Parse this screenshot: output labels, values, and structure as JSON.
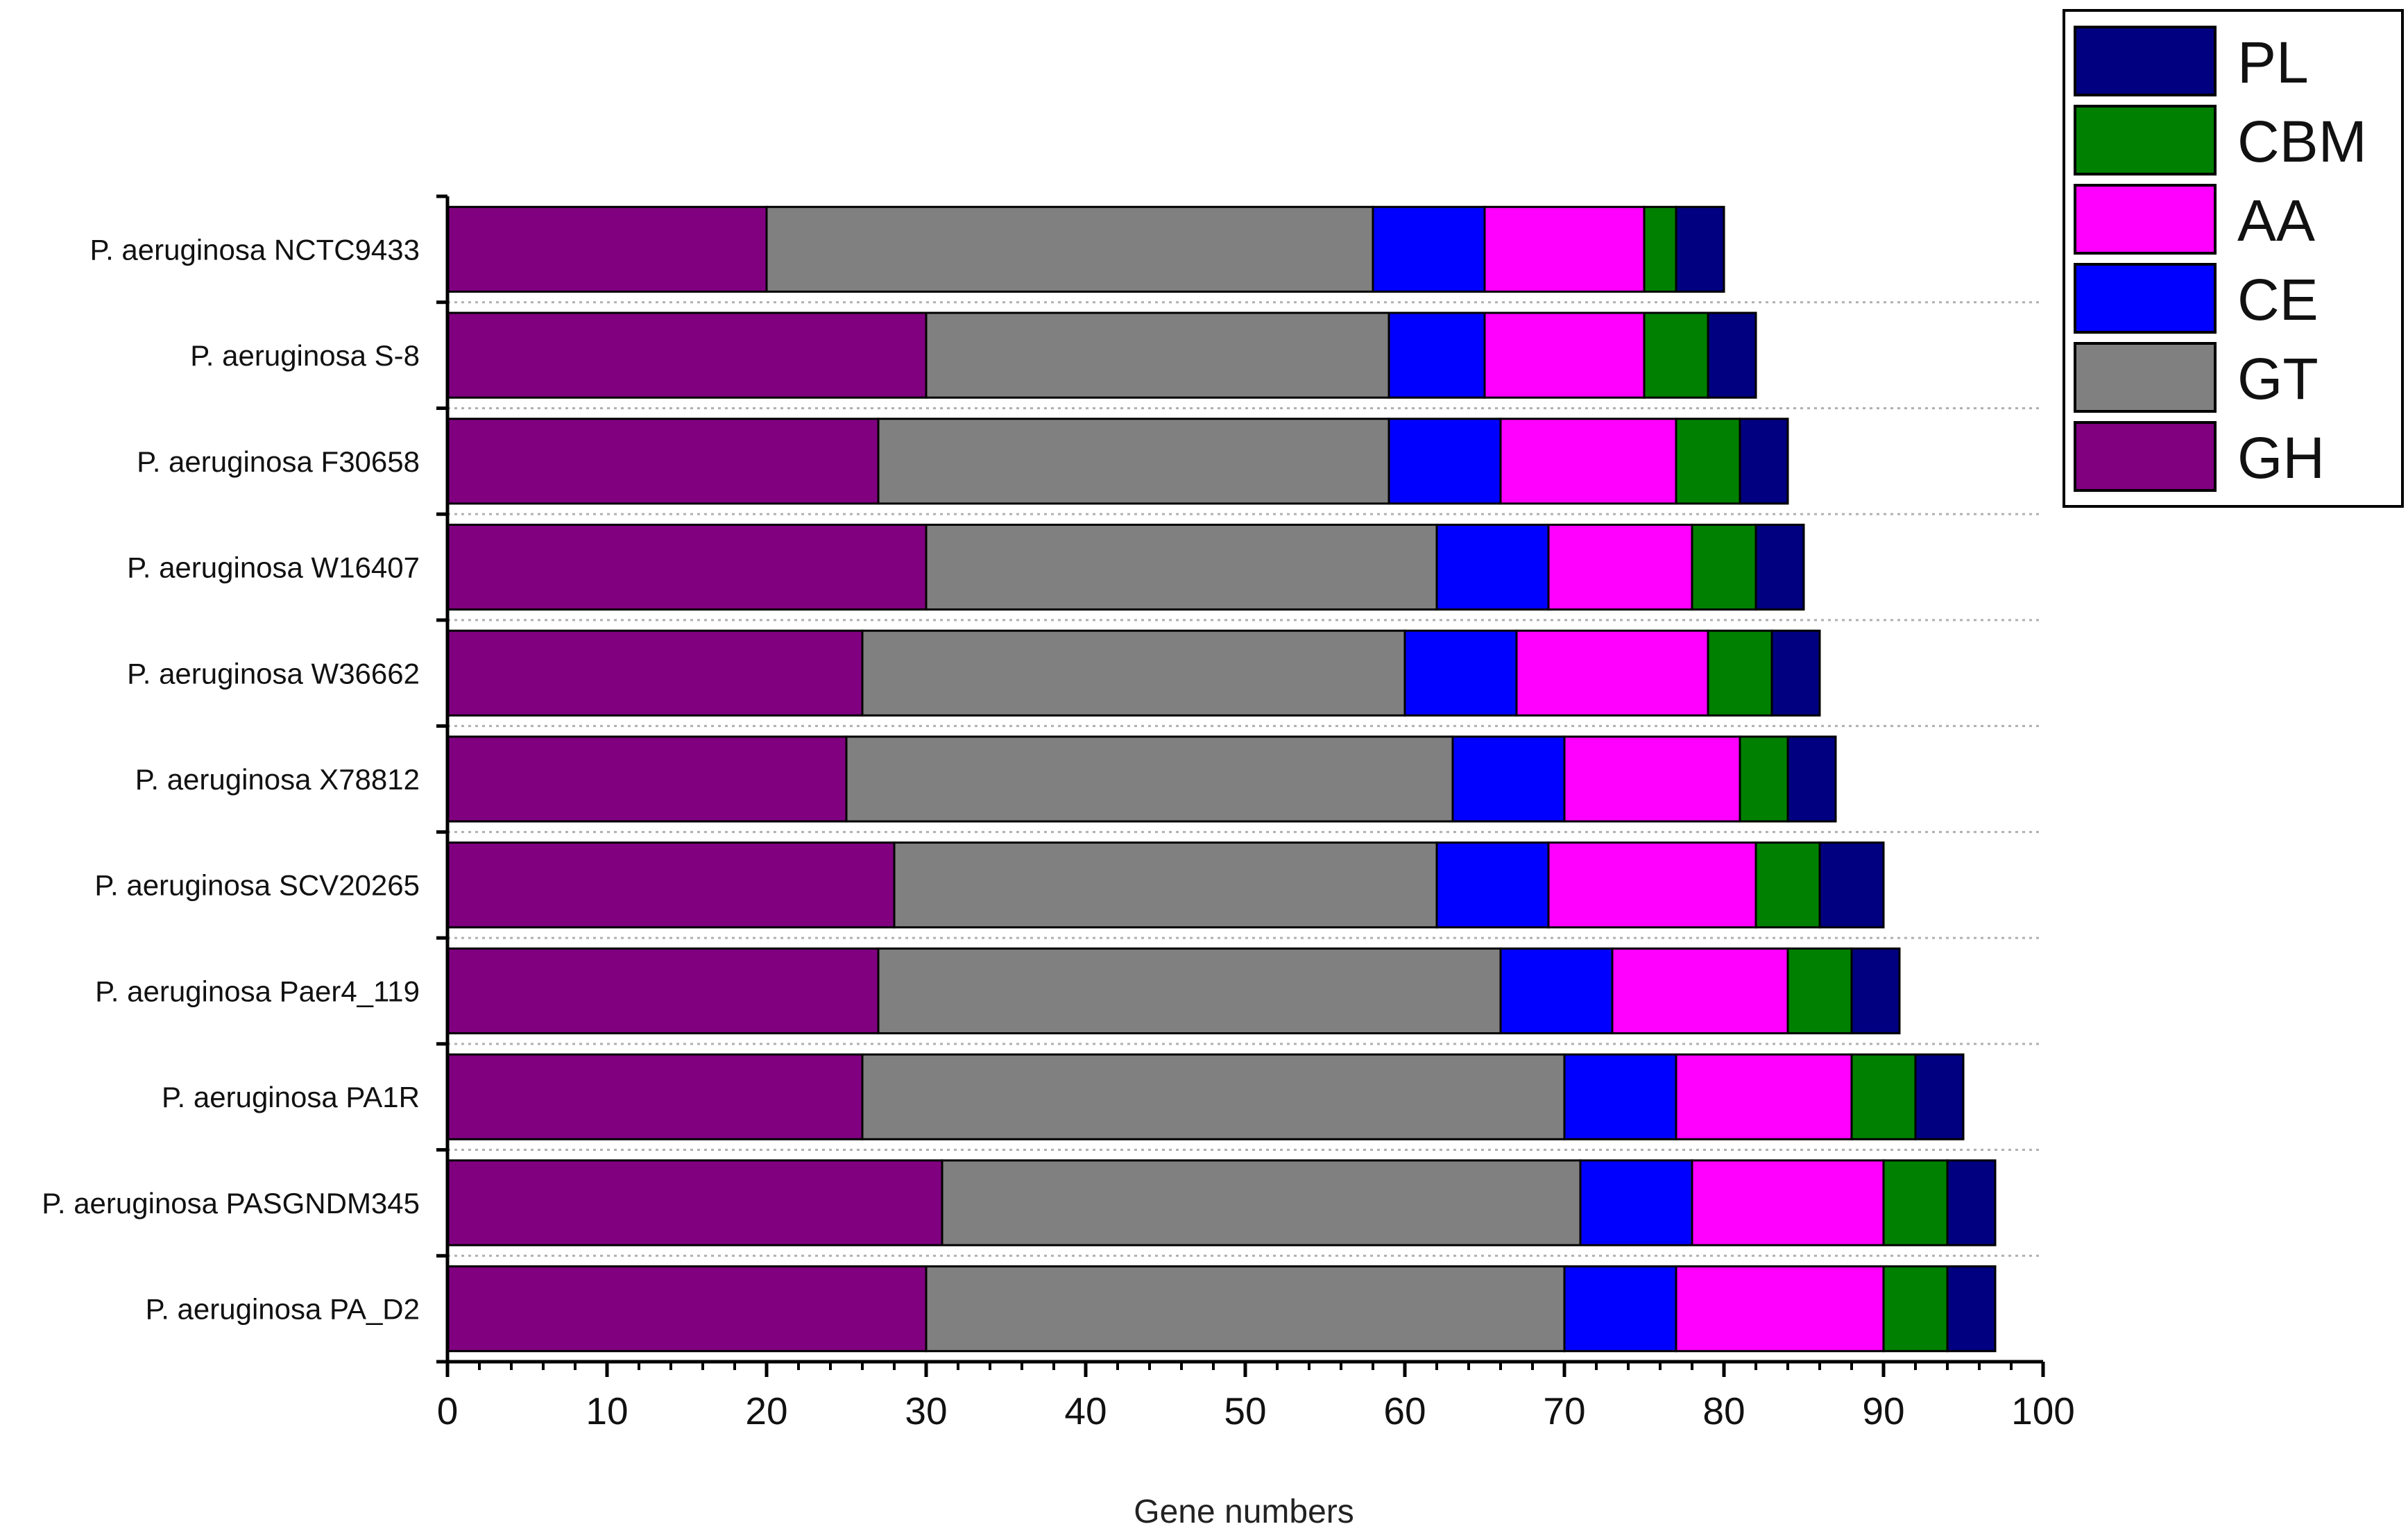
{
  "chart_data": {
    "type": "bar",
    "orientation": "horizontal",
    "stacked": true,
    "xlabel": "Gene numbers",
    "ylabel": "",
    "xlim": [
      0,
      100
    ],
    "xticks": [
      0,
      10,
      20,
      30,
      40,
      50,
      60,
      70,
      80,
      90,
      100
    ],
    "grid": "dotted horizontal separators between bars",
    "legend_position": "top-right",
    "categories": [
      "P. aeruginosa NCTC9433",
      "P. aeruginosa S-8",
      "P. aeruginosa F30658",
      "P. aeruginosa W16407",
      "P. aeruginosa W36662",
      "P. aeruginosa X78812",
      "P. aeruginosa SCV20265",
      "P. aeruginosa Paer4_119",
      "P. aeruginosa PA1R",
      "P. aeruginosa PASGNDM345",
      "P. aeruginosa PA_D2"
    ],
    "series": [
      {
        "name": "GH",
        "color": "#800080",
        "values": [
          20,
          30,
          27,
          30,
          26,
          25,
          28,
          27,
          26,
          31,
          30
        ]
      },
      {
        "name": "GT",
        "color": "#808080",
        "values": [
          38,
          29,
          32,
          32,
          34,
          38,
          34,
          39,
          44,
          40,
          40
        ]
      },
      {
        "name": "CE",
        "color": "#0000FF",
        "values": [
          7,
          6,
          7,
          7,
          7,
          7,
          7,
          7,
          7,
          7,
          7
        ]
      },
      {
        "name": "AA",
        "color": "#FF00FF",
        "values": [
          10,
          10,
          11,
          9,
          12,
          11,
          13,
          11,
          11,
          12,
          13
        ]
      },
      {
        "name": "CBM",
        "color": "#008000",
        "values": [
          2,
          4,
          4,
          4,
          4,
          3,
          4,
          4,
          4,
          4,
          4
        ]
      },
      {
        "name": "PL",
        "color": "#000080",
        "values": [
          3,
          3,
          3,
          3,
          3,
          3,
          4,
          3,
          3,
          3,
          3
        ]
      }
    ],
    "legend_order": [
      "PL",
      "CBM",
      "AA",
      "CE",
      "GT",
      "GH"
    ]
  }
}
